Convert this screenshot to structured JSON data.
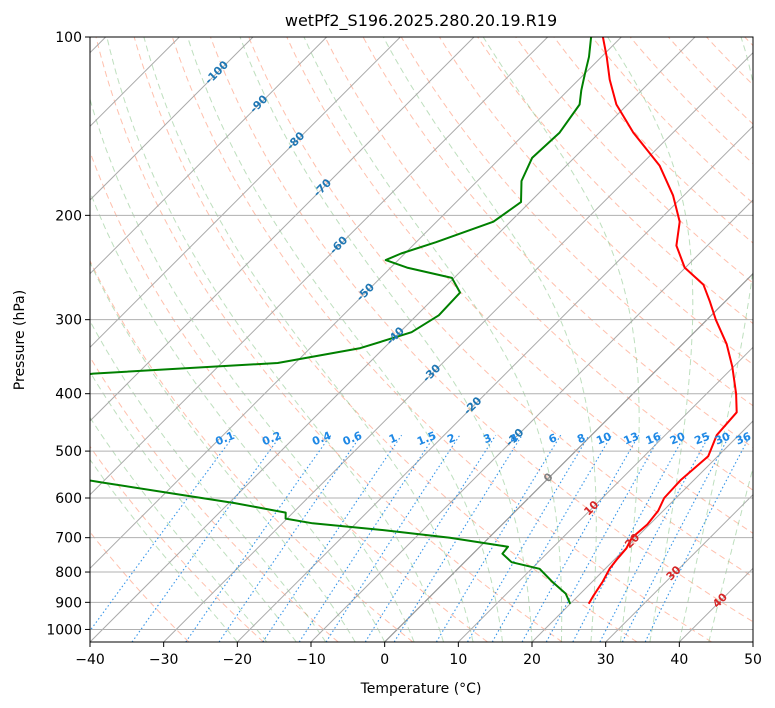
{
  "chart_data": {
    "type": "line",
    "title": "wetPf2_S196.2025.280.20.19.R19",
    "xlabel": "Temperature (°C)",
    "ylabel": "Pressure (hPa)",
    "xlim": [
      -40,
      50
    ],
    "ylim": [
      1050,
      100
    ],
    "x_ticks": [
      -40,
      -30,
      -20,
      -10,
      0,
      10,
      20,
      30,
      40,
      50
    ],
    "x_tick_labels": [
      "−40",
      "−30",
      "−20",
      "−10",
      "0",
      "10",
      "20",
      "30",
      "40",
      "50"
    ],
    "y_ticks": [
      100,
      200,
      300,
      400,
      500,
      600,
      700,
      800,
      900,
      1000
    ],
    "y_tick_labels": [
      "100",
      "200",
      "300",
      "400",
      "500",
      "600",
      "700",
      "800",
      "900",
      "1000"
    ],
    "skew_deg": 45,
    "colors": {
      "temperature": "#ff0000",
      "dewpoint": "#008000",
      "isotherm": "#aaaaaa",
      "isotherm_label": "#1f77b4",
      "dry_adiabat": "#ff8c69",
      "moist_adiabat": "#7dbf7d",
      "mixing_ratio": "#1e88e5",
      "zero_isotherm": "#808080",
      "iso_red_label": "#d62728"
    },
    "series": [
      {
        "name": "Temperature",
        "points": [
          {
            "p": 905,
            "t": 22.5
          },
          {
            "p": 880,
            "t": 22.1
          },
          {
            "p": 830,
            "t": 21.4
          },
          {
            "p": 790,
            "t": 20.6
          },
          {
            "p": 760,
            "t": 20.3
          },
          {
            "p": 730,
            "t": 20.1
          },
          {
            "p": 700,
            "t": 19.4
          },
          {
            "p": 665,
            "t": 19.7
          },
          {
            "p": 630,
            "t": 19.3
          },
          {
            "p": 600,
            "t": 18.4
          },
          {
            "p": 560,
            "t": 18.2
          },
          {
            "p": 510,
            "t": 18.7
          },
          {
            "p": 470,
            "t": 17.0
          },
          {
            "p": 430,
            "t": 16.6
          },
          {
            "p": 400,
            "t": 14.0
          },
          {
            "p": 360,
            "t": 9.8
          },
          {
            "p": 330,
            "t": 6.0
          },
          {
            "p": 300,
            "t": 1.2
          },
          {
            "p": 280,
            "t": -2.0
          },
          {
            "p": 262,
            "t": -5.2
          },
          {
            "p": 245,
            "t": -10.1
          },
          {
            "p": 225,
            "t": -14.2
          },
          {
            "p": 205,
            "t": -17.0
          },
          {
            "p": 185,
            "t": -21.5
          },
          {
            "p": 165,
            "t": -27.3
          },
          {
            "p": 145,
            "t": -35.4
          },
          {
            "p": 130,
            "t": -41.5
          },
          {
            "p": 118,
            "t": -45.8
          },
          {
            "p": 108,
            "t": -49.3
          },
          {
            "p": 100,
            "t": -52.5
          }
        ]
      },
      {
        "name": "Dewpoint",
        "points": [
          {
            "p": 905,
            "t": 20.0
          },
          {
            "p": 870,
            "t": 18.0
          },
          {
            "p": 830,
            "t": 14.5
          },
          {
            "p": 790,
            "t": 11.1
          },
          {
            "p": 770,
            "t": 6.4
          },
          {
            "p": 745,
            "t": 4.0
          },
          {
            "p": 725,
            "t": 3.8
          },
          {
            "p": 700,
            "t": -5.3
          },
          {
            "p": 680,
            "t": -15.2
          },
          {
            "p": 662,
            "t": -25.9
          },
          {
            "p": 650,
            "t": -30.2
          },
          {
            "p": 635,
            "t": -31.0
          },
          {
            "p": 612,
            "t": -39.2
          },
          {
            "p": 590,
            "t": -48.7
          },
          {
            "p": 565,
            "t": -60.0
          },
          {
            "p": 520,
            "t": -80.0
          },
          {
            "p": 480,
            "t": -96.0
          },
          {
            "p": 475,
            "t": -69.0
          },
          {
            "p": 465,
            "t": -70.5
          },
          {
            "p": 455,
            "t": -80.8
          },
          {
            "p": 435,
            "t": -84.0
          },
          {
            "p": 415,
            "t": -83.2
          },
          {
            "p": 395,
            "t": -80.3
          },
          {
            "p": 385,
            "t": -80.7
          },
          {
            "p": 375,
            "t": -78.8
          },
          {
            "p": 370,
            "t": -76.0
          },
          {
            "p": 355,
            "t": -52.4
          },
          {
            "p": 335,
            "t": -43.2
          },
          {
            "p": 315,
            "t": -38.4
          },
          {
            "p": 295,
            "t": -37.0
          },
          {
            "p": 270,
            "t": -37.2
          },
          {
            "p": 255,
            "t": -40.3
          },
          {
            "p": 245,
            "t": -47.8
          },
          {
            "p": 238,
            "t": -51.7
          },
          {
            "p": 232,
            "t": -50.5
          },
          {
            "p": 222,
            "t": -47.3
          },
          {
            "p": 205,
            "t": -42.3
          },
          {
            "p": 190,
            "t": -41.2
          },
          {
            "p": 175,
            "t": -44.0
          },
          {
            "p": 160,
            "t": -45.7
          },
          {
            "p": 145,
            "t": -45.4
          },
          {
            "p": 130,
            "t": -46.5
          },
          {
            "p": 123,
            "t": -48.2
          },
          {
            "p": 116,
            "t": -49.8
          },
          {
            "p": 108,
            "t": -51.7
          },
          {
            "p": 100,
            "t": -54.1
          }
        ]
      }
    ],
    "isotherm_labels": [
      {
        "t": -100,
        "text": "-100"
      },
      {
        "t": -90,
        "text": "-90"
      },
      {
        "t": -80,
        "text": "-80"
      },
      {
        "t": -70,
        "text": "-70"
      },
      {
        "t": -60,
        "text": "-60"
      },
      {
        "t": -50,
        "text": "-50"
      },
      {
        "t": -40,
        "text": "-40"
      },
      {
        "t": -30,
        "text": "-30"
      },
      {
        "t": -20,
        "text": "-20"
      },
      {
        "t": -10,
        "text": "-10"
      },
      {
        "t": 0,
        "text": "0"
      },
      {
        "t": 10,
        "text": "10"
      },
      {
        "t": 20,
        "text": "20"
      },
      {
        "t": 30,
        "text": "30"
      },
      {
        "t": 40,
        "text": "40"
      }
    ],
    "mixing_ratio_labels": [
      "0.1",
      "0.2",
      "0.4",
      "0.6",
      "1",
      "1.5",
      "2",
      "3",
      "4",
      "6",
      "8",
      "10",
      "13",
      "16",
      "20",
      "25",
      "30",
      "36"
    ],
    "mixing_ratio_values": [
      0.1,
      0.2,
      0.4,
      0.6,
      1,
      1.5,
      2,
      3,
      4,
      6,
      8,
      10,
      13,
      16,
      20,
      25,
      30,
      36
    ]
  }
}
